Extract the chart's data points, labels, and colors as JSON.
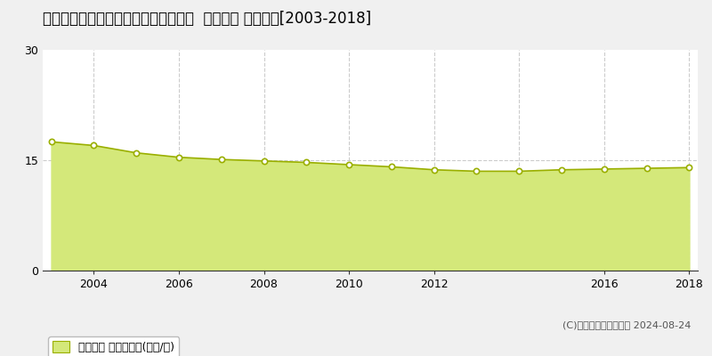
{
  "title": "福島県郡山市昭和１丁目１４５番３外  地価公示 地価推移[2003-2018]",
  "years": [
    2003,
    2004,
    2005,
    2006,
    2007,
    2008,
    2009,
    2010,
    2011,
    2012,
    2013,
    2014,
    2015,
    2016,
    2017,
    2018
  ],
  "values": [
    17.5,
    17.0,
    16.0,
    15.4,
    15.1,
    14.9,
    14.7,
    14.4,
    14.1,
    13.7,
    13.5,
    13.5,
    13.7,
    13.8,
    13.9,
    14.0
  ],
  "line_color": "#9aaf00",
  "fill_color": "#d4e87a",
  "marker_color": "#ffffff",
  "marker_edge_color": "#9aaf00",
  "bg_color": "#f0f0f0",
  "plot_bg_color": "#ffffff",
  "grid_color": "#cccccc",
  "ylim": [
    0,
    30
  ],
  "yticks": [
    0,
    15,
    30
  ],
  "xtick_years": [
    2004,
    2006,
    2008,
    2010,
    2012,
    2016,
    2018
  ],
  "vgrid_years": [
    2004,
    2006,
    2008,
    2010,
    2012,
    2014,
    2016,
    2018
  ],
  "legend_label": "地価公示 平均坪単価(万円/坪)",
  "copyright": "(C)土地価格ドットコム 2024-08-24",
  "title_fontsize": 12,
  "axis_fontsize": 9,
  "legend_fontsize": 9
}
